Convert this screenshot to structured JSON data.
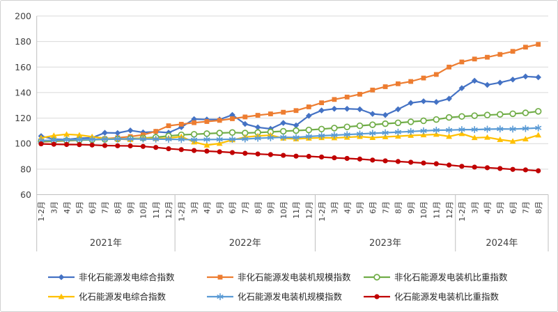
{
  "chart_data": {
    "type": "line",
    "title": "",
    "xlabel": "",
    "ylabel": "",
    "ylim": [
      60,
      200
    ],
    "y_axis": {
      "min": 60,
      "max": 200,
      "step": 20,
      "tick_labels": [
        "200",
        "180",
        "160",
        "140",
        "120",
        "100",
        "80",
        "60"
      ]
    },
    "x_axis": {
      "months": [
        "1-2月",
        "3月",
        "4月",
        "5月",
        "6月",
        "7月",
        "8月",
        "9月",
        "10月",
        "11月",
        "12月",
        "1-2月",
        "3月",
        "4月",
        "5月",
        "6月",
        "7月",
        "8月",
        "9月",
        "10月",
        "11月",
        "12月",
        "1-2月",
        "3月",
        "4月",
        "5月",
        "6月",
        "7月",
        "8月",
        "9月",
        "10月",
        "11月",
        "12月",
        "1-2月",
        "3月",
        "4月",
        "5月",
        "6月",
        "7月",
        "8月"
      ],
      "years": [
        {
          "label": "2021年",
          "months": 11
        },
        {
          "label": "2022年",
          "months": 11
        },
        {
          "label": "2023年",
          "months": 11
        },
        {
          "label": "2024年",
          "months": 7
        }
      ]
    },
    "grid": true,
    "legend_position": "bottom",
    "series": [
      {
        "name": "非化石能源发电综合指数",
        "color": "#4472C4",
        "marker": "diamond",
        "values": [
          105.9,
          103.5,
          103.2,
          104.2,
          104.6,
          108.5,
          108.3,
          110.3,
          108.8,
          109.3,
          108.6,
          112.9,
          119.2,
          118.9,
          118.9,
          122.5,
          115.4,
          112.8,
          111.6,
          116.2,
          114.3,
          121.8,
          126.0,
          127.3,
          127.3,
          126.9,
          123.3,
          122.4,
          126.9,
          131.9,
          133.2,
          132.6,
          135.2,
          143.5,
          149.3,
          146.0,
          147.8,
          150.2,
          152.6,
          152.0
        ]
      },
      {
        "name": "非化石能源发电装机规模指数",
        "color": "#ED7D31",
        "marker": "square",
        "values": [
          101.4,
          101.8,
          102.2,
          102.7,
          103.3,
          103.9,
          104.6,
          105.5,
          106.9,
          109.6,
          114.0,
          115.2,
          116.4,
          117.3,
          118.2,
          119.5,
          120.9,
          122.2,
          123.3,
          124.6,
          125.9,
          128.8,
          132.0,
          134.6,
          136.5,
          138.7,
          142.0,
          144.6,
          146.9,
          148.7,
          151.4,
          154.2,
          160.0,
          164.0,
          166.3,
          167.7,
          169.9,
          172.3,
          175.6,
          177.8
        ]
      },
      {
        "name": "非化石能源发电装机比重指数",
        "color": "#70AD47",
        "marker": "circle-open",
        "values": [
          101.8,
          102.1,
          102.4,
          102.7,
          103.0,
          103.3,
          103.6,
          103.9,
          104.4,
          105.0,
          106.0,
          106.9,
          107.3,
          107.8,
          108.3,
          108.7,
          108.3,
          108.7,
          109.1,
          109.7,
          110.2,
          110.7,
          111.4,
          112.2,
          113.1,
          114.0,
          114.8,
          115.6,
          116.3,
          117.1,
          117.9,
          118.9,
          120.5,
          121.3,
          121.9,
          122.4,
          122.9,
          123.4,
          124.1,
          125.3
        ]
      },
      {
        "name": "化石能源发电综合指数",
        "color": "#FFC000",
        "marker": "triangle",
        "values": [
          104.5,
          106.3,
          107.3,
          106.7,
          105.4,
          104.2,
          103.6,
          103.2,
          104.6,
          103.9,
          104.4,
          105.5,
          101.2,
          98.8,
          100.1,
          102.9,
          105.1,
          106.0,
          106.6,
          104.2,
          103.7,
          104.2,
          104.6,
          104.5,
          104.9,
          105.5,
          104.7,
          105.3,
          105.8,
          106.4,
          106.8,
          107.2,
          105.6,
          107.8,
          104.6,
          104.9,
          103.1,
          101.8,
          103.6,
          106.7
        ]
      },
      {
        "name": "化石能源发电装机规模指数",
        "color": "#5B9BD5",
        "marker": "asterisk",
        "values": [
          102.4,
          102.7,
          103.0,
          103.1,
          103.3,
          103.5,
          103.6,
          103.6,
          103.6,
          103.5,
          103.4,
          103.3,
          103.0,
          103.2,
          103.3,
          103.4,
          103.6,
          104.2,
          104.6,
          105.0,
          104.8,
          105.6,
          106.2,
          106.6,
          107.1,
          107.6,
          108.1,
          108.5,
          109.0,
          109.5,
          110.0,
          110.5,
          110.6,
          111.0,
          111.0,
          111.3,
          111.5,
          111.4,
          111.8,
          112.3
        ]
      },
      {
        "name": "化石能源发电装机比重指数",
        "color": "#C00000",
        "marker": "circle",
        "values": [
          99.8,
          99.5,
          99.3,
          99.2,
          98.9,
          98.5,
          98.3,
          98.2,
          97.8,
          97.0,
          96.0,
          95.3,
          94.6,
          94.1,
          93.6,
          93.0,
          92.4,
          91.9,
          91.4,
          90.8,
          90.2,
          90.0,
          89.5,
          88.9,
          88.4,
          87.9,
          87.1,
          86.5,
          86.0,
          85.4,
          84.8,
          84.2,
          83.2,
          82.2,
          81.6,
          81.1,
          80.5,
          79.8,
          79.4,
          78.7
        ]
      }
    ],
    "style": {
      "background": "#ffffff",
      "grid_color": "#d9d9d9",
      "axis_color": "#bfbfbf",
      "text_color": "#404040"
    }
  }
}
